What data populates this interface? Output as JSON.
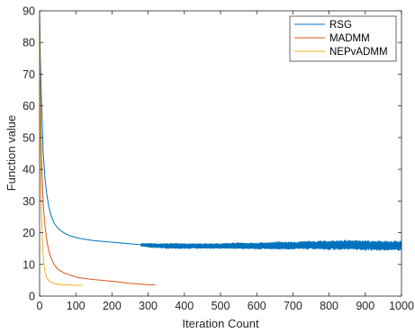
{
  "chart_data": {
    "type": "line",
    "title": "",
    "xlabel": "Iteration Count",
    "ylabel": "Function value",
    "xlim": [
      0,
      1000
    ],
    "ylim": [
      0,
      90
    ],
    "xticks": [
      0,
      100,
      200,
      300,
      400,
      500,
      600,
      700,
      800,
      900,
      1000
    ],
    "yticks": [
      0,
      10,
      20,
      30,
      40,
      50,
      60,
      70,
      80,
      90
    ],
    "grid": false,
    "legend_position": "top-right",
    "series": [
      {
        "name": "RSG",
        "color": "#0072BD",
        "noise_from_x": 280,
        "x": [
          0,
          2,
          5,
          8,
          10,
          15,
          20,
          25,
          30,
          40,
          50,
          60,
          70,
          80,
          100,
          120,
          150,
          200,
          250,
          300,
          350,
          400,
          450,
          500,
          550,
          600,
          650,
          700,
          750,
          800,
          850,
          900,
          950,
          1000
        ],
        "y": [
          89,
          75,
          62,
          52,
          45,
          37,
          32,
          28.5,
          26,
          23,
          21.5,
          20.5,
          19.8,
          19.2,
          18.5,
          18,
          17.5,
          17,
          16.5,
          16,
          15.8,
          15.8,
          15.8,
          15.8,
          15.9,
          15.8,
          16,
          15.9,
          16.1,
          16,
          16.2,
          16,
          15.9,
          15.9
        ],
        "band": [
          0,
          0,
          0,
          0,
          0,
          0,
          0,
          0,
          0,
          0,
          0,
          0,
          0,
          0,
          0,
          0,
          0,
          0,
          0.2,
          0.6,
          0.8,
          0.8,
          0.8,
          0.8,
          1,
          1,
          1.2,
          1.2,
          1.3,
          1.4,
          1.5,
          1.5,
          1.5,
          1.5
        ]
      },
      {
        "name": "MADMM",
        "color": "#D95319",
        "x": [
          0,
          2,
          5,
          8,
          10,
          15,
          20,
          25,
          30,
          40,
          50,
          60,
          70,
          80,
          100,
          120,
          150,
          200,
          250,
          300,
          320
        ],
        "y": [
          89,
          65,
          45,
          35,
          29,
          22,
          17.5,
          14.5,
          12.5,
          10,
          8.5,
          7.8,
          7.2,
          6.8,
          6,
          5.6,
          5.2,
          4.7,
          4,
          3.6,
          3.5
        ]
      },
      {
        "name": "NEPvADMM",
        "color": "#EDB120",
        "x": [
          0,
          2,
          4,
          6,
          8,
          10,
          12,
          15,
          20,
          25,
          30,
          40,
          50,
          60,
          80,
          100,
          120
        ],
        "y": [
          89,
          55,
          35,
          24,
          17,
          12.5,
          10,
          7.5,
          5.8,
          5,
          4.5,
          4,
          3.8,
          3.6,
          3.5,
          3.4,
          3.4
        ]
      }
    ]
  }
}
